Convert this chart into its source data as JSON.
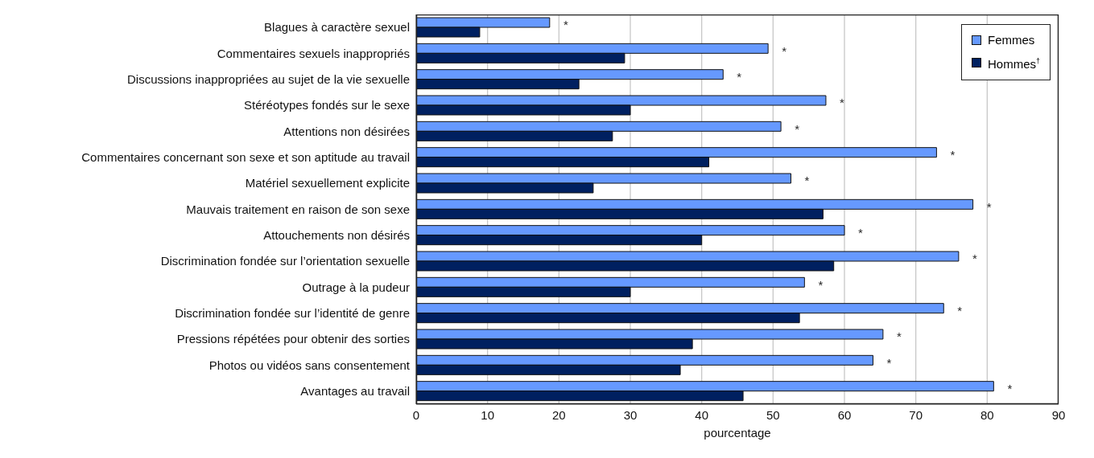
{
  "chart_data": {
    "type": "bar",
    "orientation": "horizontal",
    "xlabel": "pourcentage",
    "categories": [
      "Blagues à caractère sexuel",
      "Commentaires sexuels inappropriés",
      "Discussions inappropriées au sujet de la vie sexuelle",
      "Stéréotypes fondés sur le sexe",
      "Attentions non désirées",
      "Commentaires concernant son sexe et son aptitude au travail",
      "Matériel sexuellement explicite",
      "Mauvais traitement en raison de son sexe",
      "Attouchements non désirés",
      "Discrimination fondée sur l’orientation sexuelle",
      "Outrage à la pudeur",
      "Discrimination fondée sur l’identité de genre",
      "Pressions répétées pour obtenir des sorties",
      "Photos ou vidéos sans consentement",
      "Avantages au travail"
    ],
    "series": [
      {
        "name": "Femmes",
        "color": "#6699ff",
        "values": [
          18.7,
          49.3,
          43,
          57.4,
          51.1,
          72.9,
          52.5,
          78,
          60,
          76,
          54.4,
          73.9,
          65.4,
          64,
          80.9
        ]
      },
      {
        "name": "Hommes$^{†}$",
        "color": "#002060",
        "values": [
          8.9,
          29.2,
          22.8,
          30,
          27.5,
          41,
          24.8,
          57,
          40,
          58.5,
          30,
          53.7,
          38.7,
          37,
          45.8
        ]
      }
    ],
    "xlim": [
      0,
      90
    ],
    "xticks": [
      0,
      10,
      20,
      30,
      40,
      50,
      60,
      70,
      80,
      90
    ],
    "grid": "x",
    "legend": "top right",
    "annotations": [
      {
        "text": "*",
        "x": 18.7,
        "y": "Blagues à caractère sexuel"
      },
      {
        "text": "*",
        "x": 49.3,
        "y": "Commentaires sexuels inappropriés"
      },
      {
        "text": "*",
        "x": 43,
        "y": "Discussions inappropriées au sujet de la vie sexuelle"
      },
      {
        "text": "*",
        "x": 57.4,
        "y": "Stéréotypes fondés sur le sexe"
      },
      {
        "text": "*",
        "x": 51.1,
        "y": "Attentions non désirées"
      },
      {
        "text": "*",
        "x": 72.9,
        "y": "Commentaires concernant son sexe et son aptitude au travail"
      },
      {
        "text": "*",
        "x": 52.5,
        "y": "Matériel sexuellement explicite"
      },
      {
        "text": "*",
        "x": 78,
        "y": "Mauvais traitement en raison de son sexe"
      },
      {
        "text": "*",
        "x": 60,
        "y": "Attouchements non désirés"
      },
      {
        "text": "*",
        "x": 76,
        "y": "Discrimination fondée sur l’orientation sexuelle"
      },
      {
        "text": "*",
        "x": 54.4,
        "y": "Outrage à la pudeur"
      },
      {
        "text": "*",
        "x": 73.9,
        "y": "Discrimination fondée sur l’identité de genre"
      },
      {
        "text": "*",
        "x": 65.4,
        "y": "Pressions répétées pour obtenir des sorties"
      },
      {
        "text": "*",
        "x": 64,
        "y": "Photos ou vidéos sans consentement"
      },
      {
        "text": "*",
        "x": 80.9,
        "y": "Avantages au travail"
      }
    ]
  }
}
